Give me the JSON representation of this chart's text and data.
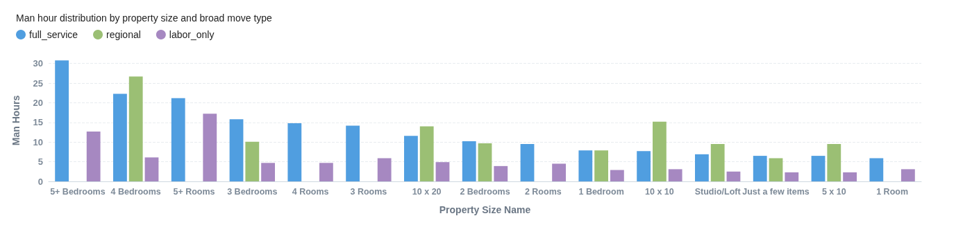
{
  "chart_data": {
    "type": "bar",
    "title": "Man hour distribution by property size and broad move type",
    "xlabel": "Property Size Name",
    "ylabel": "Man Hours",
    "categories": [
      "5+ Bedrooms",
      "4 Bedrooms",
      "5+ Rooms",
      "3 Bedrooms",
      "4 Rooms",
      "3 Rooms",
      "10 x 20",
      "2 Bedrooms",
      "2 Rooms",
      "1 Bedroom",
      "10 x 10",
      "Studio/Loft",
      "Just a few items",
      "5 x 10",
      "1 Room"
    ],
    "series": [
      {
        "name": "full_service",
        "color": "#509ee0",
        "values": [
          30.8,
          22.3,
          21.2,
          15.8,
          14.8,
          14.2,
          11.6,
          10.2,
          9.5,
          7.9,
          7.7,
          6.9,
          6.5,
          6.5,
          5.9
        ]
      },
      {
        "name": "regional",
        "color": "#9bbf74",
        "values": [
          null,
          26.7,
          null,
          10.1,
          null,
          null,
          14.0,
          9.7,
          null,
          7.9,
          15.2,
          9.5,
          5.9,
          9.5,
          null
        ]
      },
      {
        "name": "labor_only",
        "color": "#a688c1",
        "values": [
          12.7,
          6.1,
          17.2,
          4.7,
          4.7,
          5.9,
          4.9,
          3.9,
          4.5,
          2.9,
          3.1,
          2.5,
          2.3,
          2.3,
          3.1
        ]
      }
    ],
    "ylim": [
      0,
      31
    ],
    "yticks": [
      0,
      5,
      10,
      15,
      20,
      25,
      30
    ],
    "grid": "y",
    "legend": "top left"
  }
}
